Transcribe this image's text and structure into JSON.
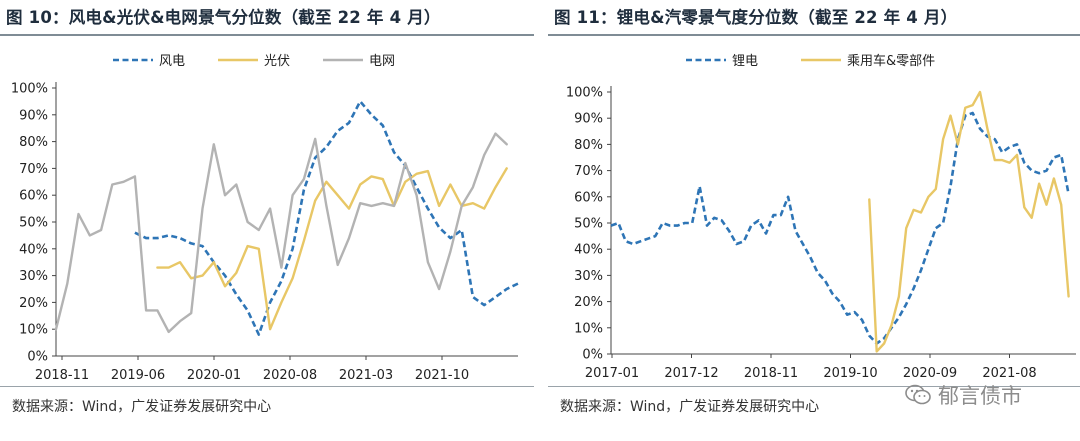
{
  "chart_data": [
    {
      "type": "line",
      "title": "图 10：风电&光伏&电网景气分位数（截至 22 年 4 月）",
      "source": "数据来源：Wind，广发证券发展研究中心",
      "ylim": [
        0,
        100
      ],
      "yticks": [
        "0%",
        "10%",
        "20%",
        "30%",
        "40%",
        "50%",
        "60%",
        "70%",
        "80%",
        "90%",
        "100%"
      ],
      "xticks": [
        "2018-11",
        "2019-06",
        "2020-01",
        "2020-08",
        "2021-03",
        "2021-10"
      ],
      "x_start": "2018-11",
      "n_points": 42,
      "legend": "top-center",
      "series": [
        {
          "name": "风电",
          "color": "#2e75b6",
          "style": "dashed",
          "values": [
            null,
            null,
            null,
            null,
            null,
            null,
            null,
            46,
            44,
            44,
            45,
            44,
            42,
            41,
            35,
            30,
            23,
            17,
            8,
            20,
            28,
            40,
            62,
            74,
            78,
            84,
            87,
            95,
            90,
            86,
            76,
            71,
            63,
            55,
            48,
            44,
            47,
            22,
            19,
            22,
            25,
            27
          ]
        },
        {
          "name": "光伏",
          "color": "#e8c766",
          "style": "solid",
          "values": [
            null,
            null,
            null,
            null,
            null,
            null,
            null,
            null,
            null,
            33,
            33,
            35,
            29,
            30,
            35,
            26,
            31,
            41,
            40,
            10,
            20,
            29,
            43,
            58,
            65,
            60,
            55,
            64,
            67,
            66,
            56,
            65,
            68,
            69,
            56,
            64,
            56,
            57,
            55,
            63,
            70,
            null
          ]
        },
        {
          "name": "电网",
          "color": "#b3b3b3",
          "style": "solid",
          "values": [
            10,
            27,
            53,
            45,
            47,
            64,
            65,
            67,
            17,
            17,
            9,
            13,
            16,
            55,
            79,
            60,
            64,
            50,
            47,
            55,
            33,
            60,
            66,
            81,
            56,
            34,
            44,
            57,
            56,
            57,
            56,
            72,
            60,
            35,
            25,
            39,
            56,
            63,
            75,
            83,
            79,
            null
          ]
        }
      ]
    },
    {
      "type": "line",
      "title": "图 11：锂电&汽零景气度分位数（截至 22 年 4 月）",
      "source": "数据来源：Wind，广发证券发展研究中心",
      "ylim": [
        0,
        100
      ],
      "yticks": [
        "0%",
        "10%",
        "20%",
        "30%",
        "40%",
        "50%",
        "60%",
        "70%",
        "80%",
        "90%",
        "100%"
      ],
      "xticks": [
        "2017-01",
        "2017-12",
        "2018-11",
        "2019-10",
        "2020-09",
        "2021-08"
      ],
      "x_start": "2017-01",
      "n_points": 64,
      "legend": "top-center",
      "series": [
        {
          "name": "锂电",
          "color": "#2e75b6",
          "style": "dashed",
          "values": [
            49,
            50,
            43,
            42,
            43,
            44,
            45,
            50,
            49,
            49,
            50,
            50,
            64,
            49,
            52,
            51,
            47,
            42,
            43,
            49,
            51,
            46,
            53,
            53,
            60,
            47,
            42,
            37,
            31,
            28,
            23,
            20,
            15,
            16,
            13,
            7,
            4,
            6,
            10,
            14,
            19,
            25,
            32,
            40,
            48,
            50,
            64,
            82,
            91,
            92,
            86,
            83,
            82,
            77,
            79,
            80,
            73,
            70,
            69,
            70,
            75,
            76,
            61,
            null
          ]
        },
        {
          "name": "乘用车&零部件",
          "color": "#e8c766",
          "style": "solid",
          "values": [
            null,
            null,
            null,
            null,
            null,
            null,
            null,
            null,
            null,
            null,
            null,
            null,
            null,
            null,
            null,
            null,
            null,
            null,
            null,
            null,
            null,
            null,
            null,
            null,
            null,
            null,
            null,
            null,
            null,
            null,
            null,
            null,
            null,
            null,
            null,
            59,
            1,
            4,
            11,
            22,
            48,
            55,
            54,
            60,
            63,
            82,
            91,
            80,
            94,
            95,
            100,
            86,
            74,
            74,
            73,
            76,
            56,
            52,
            65,
            57,
            67,
            57,
            22,
            null
          ]
        }
      ]
    }
  ],
  "watermark": {
    "text": "郁言债市",
    "icon": "wechat-icon"
  }
}
